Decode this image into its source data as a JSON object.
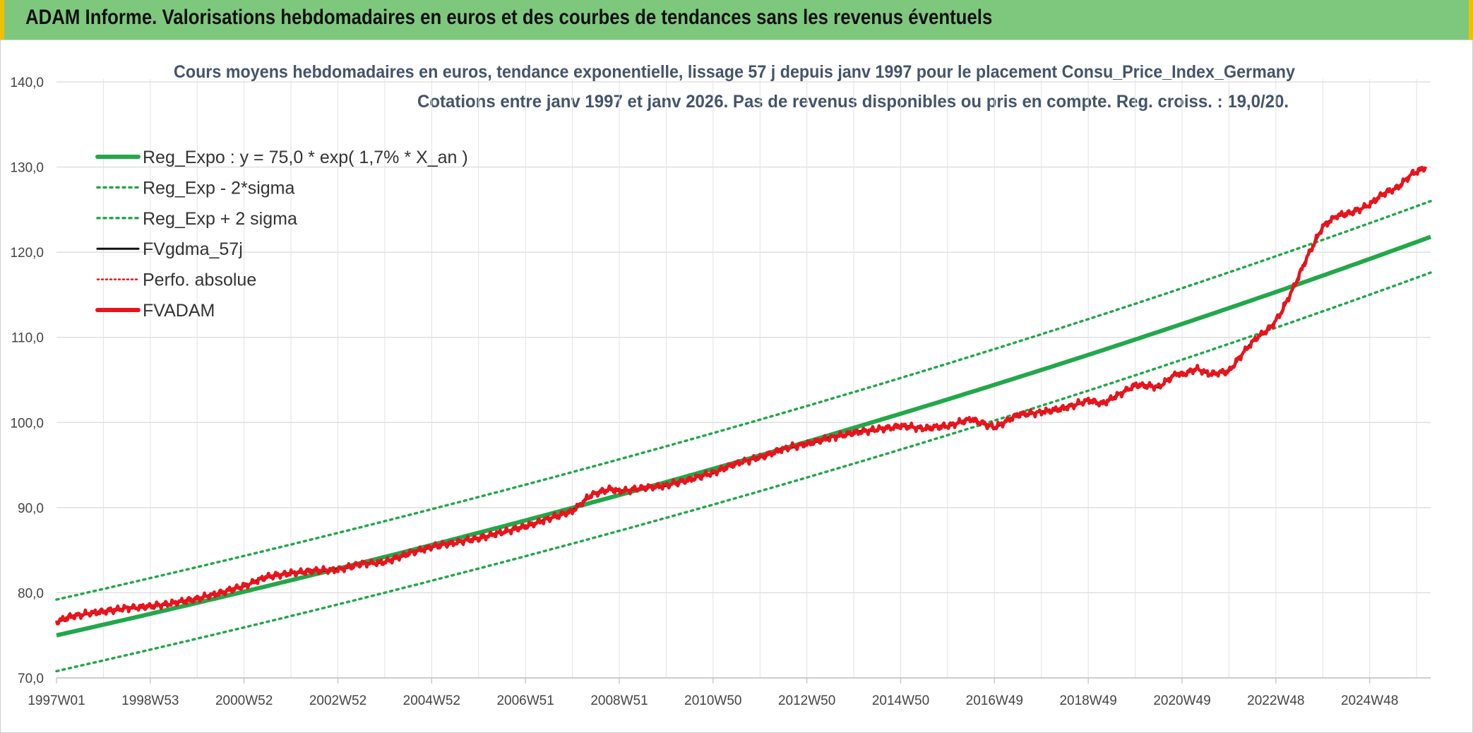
{
  "header": {
    "title": "ADAM Informe. Valorisations hebdomadaires en euros et des courbes de tendances sans les revenus éventuels"
  },
  "colors": {
    "banner": "#7ec87e",
    "trend_green": "#22a84a",
    "red": "#e8141c",
    "black": "#111111"
  },
  "chart_data": {
    "type": "line",
    "title": "Cours moyens hebdomadaires en euros, tendance exponentielle, lissage 57 j depuis janv 1997 pour le placement Consu_Price_Index_Germany",
    "subtitle": "Cotations entre janv 1997 et janv 2026. Pas de revenus disponibles ou pris en compte. Reg. croiss. : 19,0/20.",
    "xlabel": "",
    "ylabel": "",
    "xlim": [
      1997.0,
      2026.3
    ],
    "ylim": [
      70,
      140
    ],
    "grid": true,
    "legend_position": "top-left",
    "x_tick_labels": [
      "1997W01",
      "1998W53",
      "2000W52",
      "2002W52",
      "2004W52",
      "2006W51",
      "2008W51",
      "2010W50",
      "2012W50",
      "2014W50",
      "2016W49",
      "2018W49",
      "2020W49",
      "2022W48",
      "2024W48"
    ],
    "x_tick_positions": [
      1997,
      1999,
      2001,
      2003,
      2005,
      2007,
      2009,
      2011,
      2013,
      2015,
      2017,
      2019,
      2021,
      2023,
      2025
    ],
    "y_ticks": [
      70,
      80,
      90,
      100,
      110,
      120,
      130,
      140
    ],
    "y_tick_labels": [
      "70,0",
      "80,0",
      "90,0",
      "100,0",
      "110,0",
      "120,0",
      "130,0",
      "140,0"
    ],
    "trend": {
      "a": 75.0,
      "b": 0.01655,
      "sigma_lower": 4.2,
      "sigma_upper": 4.2
    },
    "series": [
      {
        "name": "Reg_Expo : y = 75,0 * exp( 1,7% *  X_an )",
        "style": "solid-thick",
        "color": "#22a84a",
        "kind": "trend"
      },
      {
        "name": "Reg_Exp - 2*sigma",
        "style": "dotted",
        "color": "#22a84a",
        "kind": "trend-lower"
      },
      {
        "name": "Reg_Exp + 2 sigma",
        "style": "dotted",
        "color": "#22a84a",
        "kind": "trend-upper"
      },
      {
        "name": "FVgdma_57j",
        "style": "solid",
        "color": "#111111",
        "kind": "smooth"
      },
      {
        "name": "Perfo. absolue",
        "style": "dotted-thin",
        "color": "#e8141c",
        "kind": "none"
      },
      {
        "name": "FVADAM",
        "style": "solid-thick",
        "color": "#e8141c",
        "kind": "price"
      }
    ],
    "price_points": {
      "x": [
        1997.0,
        1997.3,
        1997.7,
        1998.0,
        1998.5,
        1999.0,
        1999.5,
        2000.0,
        2000.5,
        2001.0,
        2001.5,
        2002.0,
        2002.5,
        2003.0,
        2003.5,
        2004.0,
        2004.5,
        2005.0,
        2005.5,
        2006.0,
        2006.5,
        2007.0,
        2007.5,
        2008.0,
        2008.4,
        2008.8,
        2009.0,
        2009.5,
        2010.0,
        2010.5,
        2011.0,
        2011.5,
        2012.0,
        2012.5,
        2013.0,
        2013.5,
        2014.0,
        2014.5,
        2014.8,
        2015.0,
        2015.5,
        2016.0,
        2016.5,
        2017.0,
        2017.5,
        2018.0,
        2018.5,
        2019.0,
        2019.3,
        2019.6,
        2020.0,
        2020.5,
        2020.9,
        2021.0,
        2021.3,
        2021.6,
        2022.0,
        2022.3,
        2022.6,
        2022.9,
        2023.1,
        2023.4,
        2023.7,
        2024.0,
        2024.3,
        2024.6,
        2025.0,
        2025.3,
        2025.6,
        2025.9,
        2026.2
      ],
      "y": [
        76.6,
        77.2,
        77.6,
        77.8,
        78.2,
        78.4,
        78.8,
        79.3,
        80.0,
        80.8,
        81.9,
        82.3,
        82.6,
        82.7,
        83.4,
        83.6,
        84.6,
        85.4,
        85.9,
        86.4,
        87.1,
        87.8,
        88.7,
        89.6,
        91.5,
        92.2,
        91.9,
        92.3,
        92.6,
        93.3,
        94.1,
        95.2,
        95.9,
        96.9,
        97.5,
        98.2,
        98.8,
        99.2,
        99.4,
        99.6,
        99.3,
        99.6,
        100.4,
        99.4,
        100.9,
        101.2,
        101.7,
        102.6,
        102.2,
        103.1,
        104.4,
        104.2,
        105.8,
        105.6,
        106.3,
        105.7,
        106.0,
        108.2,
        110.0,
        111.2,
        112.8,
        116.1,
        119.8,
        123.0,
        124.3,
        124.6,
        125.6,
        126.9,
        127.6,
        129.2,
        130.0
      ]
    }
  }
}
